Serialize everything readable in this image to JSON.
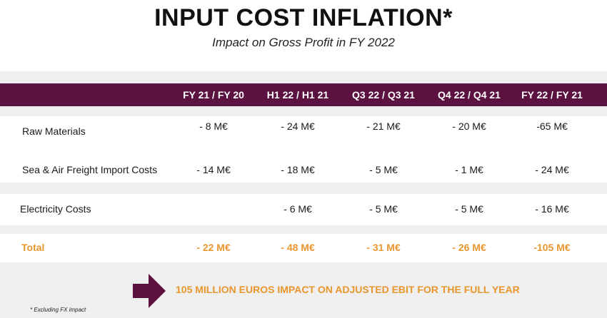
{
  "title": "INPUT COST INFLATION*",
  "subtitle": "Impact on Gross Profit in FY 2022",
  "columns": [
    "FY 21 / FY 20",
    "H1 22 / H1 21",
    "Q3 22 / Q3 21",
    "Q4 22 / Q4 21",
    "FY 22 / FY 21"
  ],
  "rows": [
    {
      "label": "Raw Materials",
      "values": [
        "- 8 M€",
        "- 24 M€",
        "- 21 M€",
        "- 20 M€",
        "-65 M€"
      ]
    },
    {
      "label": "Sea & Air Freight Import Costs",
      "values": [
        "- 14 M€",
        "- 18 M€",
        "- 5 M€",
        "- 1 M€",
        "- 24 M€"
      ]
    },
    {
      "label": "Electricity Costs",
      "values": [
        "",
        "- 6 M€",
        "- 5 M€",
        "- 5 M€",
        "- 16 M€"
      ]
    }
  ],
  "total": {
    "label": "Total",
    "values": [
      "- 22 M€",
      "- 48 M€",
      "- 31 M€",
      "- 26 M€",
      "-105 M€"
    ]
  },
  "impact_text": "105 MILLION EUROS IMPACT ON ADJUSTED EBIT FOR THE FULL YEAR",
  "footnote": "* Excluding FX impact",
  "colors": {
    "header_bg": "#5c1240",
    "accent": "#e8962e",
    "band": "#efefef",
    "arrow": "#5c1240"
  }
}
